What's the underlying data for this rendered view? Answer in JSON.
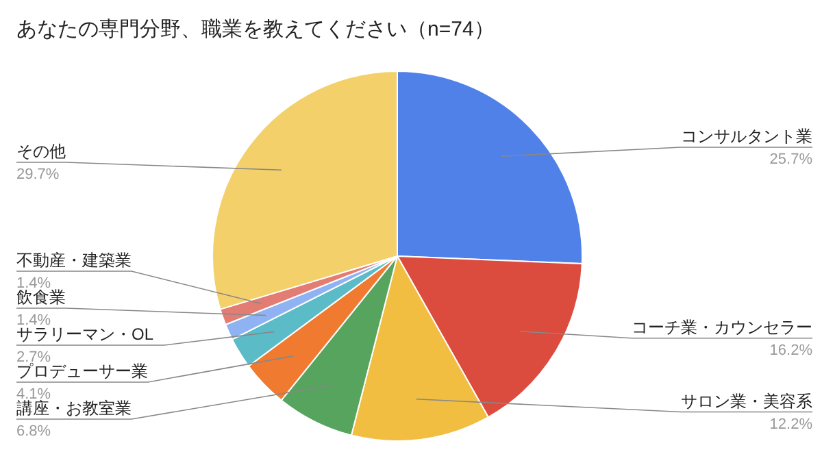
{
  "chart_data": {
    "type": "pie",
    "title": "あなたの専門分野、職業を教えてください（n=74）",
    "categories": [
      "コンサルタント業",
      "コーチ業・カウンセラー",
      "サロン業・美容系",
      "講座・お教室業",
      "プロデューサー業",
      "サラリーマン・OL",
      "飲食業",
      "不動産・建築業",
      "その他"
    ],
    "values": [
      25.7,
      16.2,
      12.2,
      6.8,
      4.1,
      2.7,
      1.4,
      1.4,
      29.7
    ],
    "value_labels": [
      "25.7%",
      "16.2%",
      "12.2%",
      "6.8%",
      "4.1%",
      "2.7%",
      "1.4%",
      "1.4%",
      "29.7%"
    ],
    "colors": [
      "#4f81e8",
      "#db4c3f",
      "#f1be42",
      "#56a45d",
      "#ef7a30",
      "#5bbcc8",
      "#8fb2f2",
      "#e37c72",
      "#f3d06a"
    ],
    "legend": false
  }
}
